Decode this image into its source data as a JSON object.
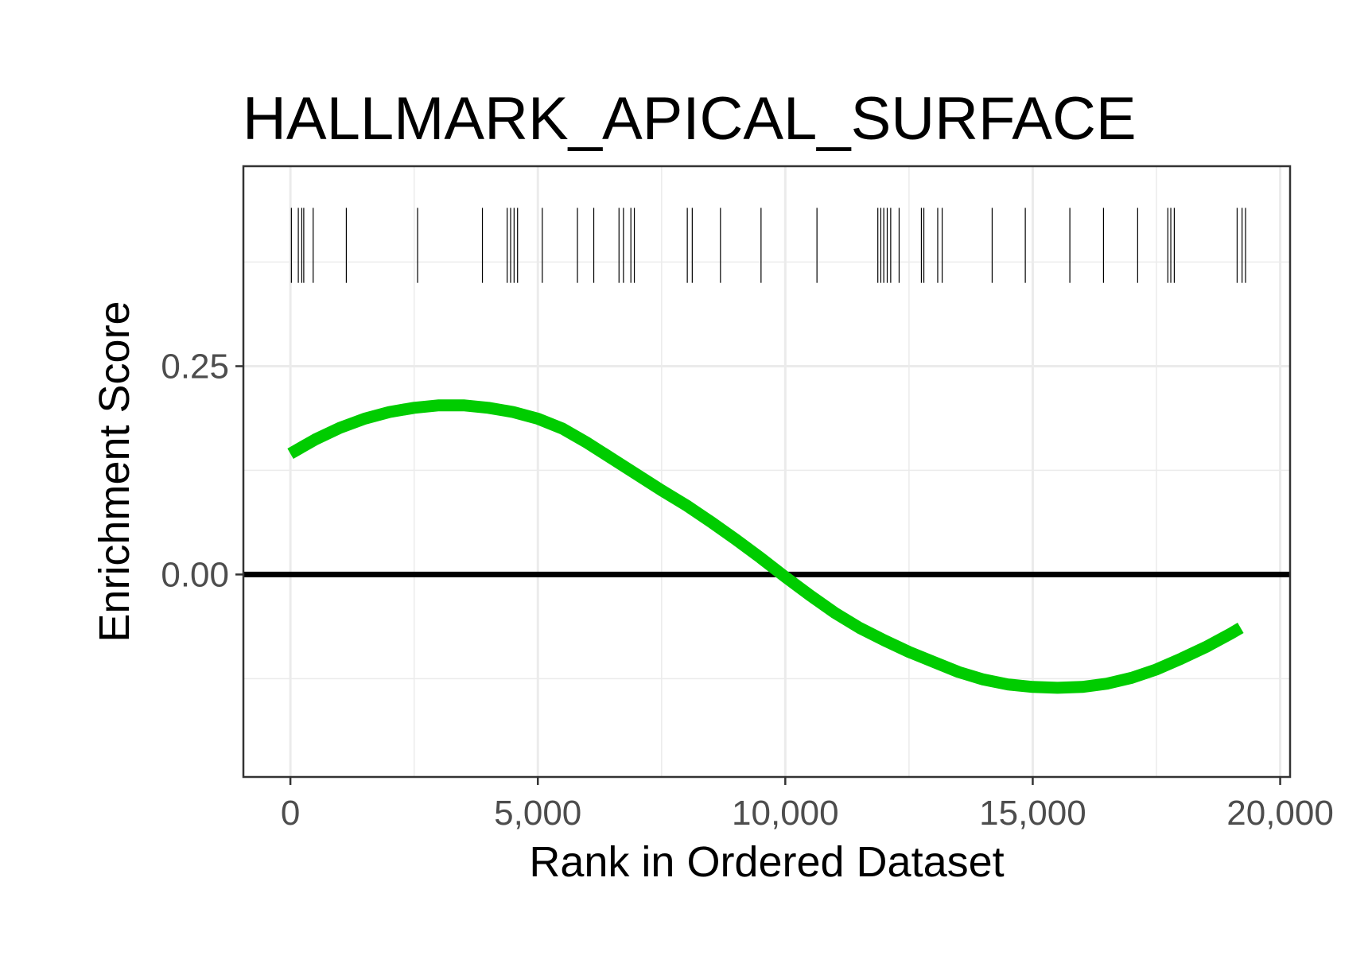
{
  "chart_data": {
    "type": "line",
    "title": "HALLMARK_APICAL_SURFACE",
    "xlabel": "Rank in Ordered Dataset",
    "ylabel": "Enrichment Score",
    "xlim": [
      -950,
      20200
    ],
    "ylim": [
      -0.243,
      0.49
    ],
    "x_ticks": [
      0,
      5000,
      10000,
      15000,
      20000
    ],
    "x_tick_labels": [
      "0",
      "5,000",
      "10,000",
      "15,000",
      "20,000"
    ],
    "y_ticks": [
      0.0,
      0.25
    ],
    "y_tick_labels": [
      "0.00",
      "0.25"
    ],
    "grid": true,
    "zero_line": 0.0,
    "colors": {
      "curve": "#00cc00",
      "zero_line": "#000000",
      "hits": "#000000",
      "grid": "#ebebeb",
      "panel_border": "#333333"
    },
    "series": [
      {
        "x": [
          0,
          500,
          1000,
          1500,
          2000,
          2500,
          3000,
          3500,
          4000,
          4500,
          5000,
          5500,
          6000,
          6500,
          7000,
          7500,
          8000,
          8500,
          9000,
          9500,
          10000,
          10500,
          11000,
          11500,
          12000,
          12500,
          13000,
          13500,
          14000,
          14500,
          15000,
          15500,
          16000,
          16500,
          17000,
          17500,
          18000,
          18500,
          19000,
          19200
        ],
        "y": [
          0.145,
          0.162,
          0.176,
          0.187,
          0.195,
          0.2,
          0.203,
          0.203,
          0.2,
          0.195,
          0.187,
          0.175,
          0.158,
          0.139,
          0.12,
          0.101,
          0.083,
          0.063,
          0.042,
          0.02,
          -0.003,
          -0.025,
          -0.046,
          -0.064,
          -0.079,
          -0.093,
          -0.105,
          -0.117,
          -0.126,
          -0.132,
          -0.135,
          -0.136,
          -0.135,
          -0.131,
          -0.124,
          -0.114,
          -0.101,
          -0.087,
          -0.071,
          -0.064
        ]
      }
    ],
    "hit_positions": [
      20,
      160,
      230,
      270,
      460,
      1130,
      2570,
      3880,
      4380,
      4450,
      4520,
      4590,
      5090,
      5800,
      6130,
      6640,
      6730,
      6880,
      6950,
      8020,
      8120,
      8690,
      9510,
      10640,
      11870,
      11930,
      11990,
      12060,
      12130,
      12300,
      12750,
      12800,
      13080,
      13170,
      14180,
      14850,
      15750,
      16430,
      17120,
      17730,
      17790,
      17860,
      19130,
      19230,
      19300
    ]
  }
}
